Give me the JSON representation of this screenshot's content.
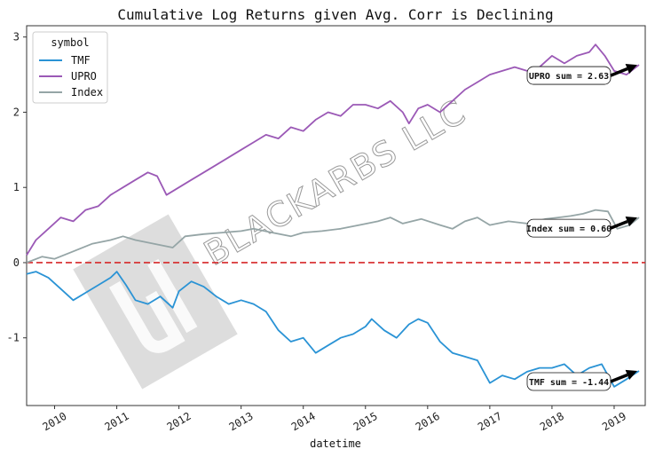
{
  "colors": {
    "tmf": "#2a93d5",
    "upro": "#9b59b6",
    "index": "#95a5a6",
    "zero_line": "#d62728",
    "watermark": "#d9d9d9"
  },
  "watermark": {
    "text": "BLACKARBS LLC",
    "icon": "blackarbs-logo"
  },
  "chart_data": {
    "type": "line",
    "title": "Cumulative Log Returns given Avg. Corr is Declining",
    "xlabel": "datetime",
    "ylabel": "",
    "xlim": [
      2009.55,
      2019.5
    ],
    "ylim": [
      -1.9,
      3.15
    ],
    "x_ticks": [
      2010,
      2011,
      2012,
      2013,
      2014,
      2015,
      2016,
      2017,
      2018,
      2019
    ],
    "x_tick_labels": [
      "2010",
      "2011",
      "2012",
      "2013",
      "2014",
      "2015",
      "2016",
      "2017",
      "2018",
      "2019"
    ],
    "y_ticks": [
      -1,
      0,
      1,
      2,
      3
    ],
    "y_tick_labels": [
      "-1",
      "0",
      "1",
      "2",
      "3"
    ],
    "grid": false,
    "legend": {
      "title": "symbol",
      "placement": "top-left"
    },
    "reference_line": {
      "y": 0,
      "style": "dashed"
    },
    "series": [
      {
        "name": "TMF",
        "x": [
          2009.55,
          2009.7,
          2009.9,
          2010.1,
          2010.3,
          2010.5,
          2010.7,
          2010.9,
          2011.0,
          2011.15,
          2011.3,
          2011.5,
          2011.7,
          2011.9,
          2012.0,
          2012.2,
          2012.4,
          2012.6,
          2012.8,
          2013.0,
          2013.2,
          2013.4,
          2013.6,
          2013.8,
          2014.0,
          2014.2,
          2014.4,
          2014.6,
          2014.8,
          2015.0,
          2015.1,
          2015.3,
          2015.5,
          2015.7,
          2015.85,
          2016.0,
          2016.2,
          2016.4,
          2016.6,
          2016.8,
          2017.0,
          2017.2,
          2017.4,
          2017.6,
          2017.8,
          2018.0,
          2018.2,
          2018.4,
          2018.6,
          2018.8,
          2019.0,
          2019.2,
          2019.4
        ],
        "y": [
          -0.15,
          -0.12,
          -0.2,
          -0.35,
          -0.5,
          -0.4,
          -0.3,
          -0.2,
          -0.12,
          -0.3,
          -0.5,
          -0.55,
          -0.45,
          -0.6,
          -0.38,
          -0.25,
          -0.32,
          -0.45,
          -0.55,
          -0.5,
          -0.55,
          -0.65,
          -0.9,
          -1.05,
          -1.0,
          -1.2,
          -1.1,
          -1.0,
          -0.95,
          -0.85,
          -0.75,
          -0.9,
          -1.0,
          -0.82,
          -0.75,
          -0.8,
          -1.05,
          -1.2,
          -1.25,
          -1.3,
          -1.6,
          -1.5,
          -1.55,
          -1.45,
          -1.4,
          -1.4,
          -1.35,
          -1.5,
          -1.4,
          -1.35,
          -1.65,
          -1.55,
          -1.44
        ]
      },
      {
        "name": "UPRO",
        "x": [
          2009.55,
          2009.7,
          2009.9,
          2010.1,
          2010.3,
          2010.5,
          2010.7,
          2010.9,
          2011.1,
          2011.3,
          2011.5,
          2011.65,
          2011.8,
          2012.0,
          2012.2,
          2012.4,
          2012.6,
          2012.8,
          2013.0,
          2013.2,
          2013.4,
          2013.6,
          2013.8,
          2014.0,
          2014.2,
          2014.4,
          2014.6,
          2014.8,
          2015.0,
          2015.2,
          2015.4,
          2015.6,
          2015.7,
          2015.85,
          2016.0,
          2016.2,
          2016.4,
          2016.6,
          2016.8,
          2017.0,
          2017.2,
          2017.4,
          2017.6,
          2017.8,
          2018.0,
          2018.2,
          2018.4,
          2018.6,
          2018.7,
          2018.85,
          2019.0,
          2019.2,
          2019.4
        ],
        "y": [
          0.1,
          0.3,
          0.45,
          0.6,
          0.55,
          0.7,
          0.75,
          0.9,
          1.0,
          1.1,
          1.2,
          1.15,
          0.9,
          1.0,
          1.1,
          1.2,
          1.3,
          1.4,
          1.5,
          1.6,
          1.7,
          1.65,
          1.8,
          1.75,
          1.9,
          2.0,
          1.95,
          2.1,
          2.1,
          2.05,
          2.15,
          2.0,
          1.85,
          2.05,
          2.1,
          2.0,
          2.15,
          2.3,
          2.4,
          2.5,
          2.55,
          2.6,
          2.55,
          2.6,
          2.75,
          2.65,
          2.75,
          2.8,
          2.9,
          2.75,
          2.55,
          2.5,
          2.63
        ]
      },
      {
        "name": "Index",
        "x": [
          2009.55,
          2009.8,
          2010.0,
          2010.3,
          2010.6,
          2010.9,
          2011.1,
          2011.3,
          2011.6,
          2011.9,
          2012.1,
          2012.4,
          2012.7,
          2013.0,
          2013.2,
          2013.5,
          2013.8,
          2014.0,
          2014.3,
          2014.6,
          2014.9,
          2015.2,
          2015.4,
          2015.6,
          2015.9,
          2016.2,
          2016.4,
          2016.6,
          2016.8,
          2017.0,
          2017.3,
          2017.6,
          2017.9,
          2018.1,
          2018.3,
          2018.5,
          2018.7,
          2018.9,
          2019.05,
          2019.25,
          2019.4
        ],
        "y": [
          0.0,
          0.08,
          0.05,
          0.15,
          0.25,
          0.3,
          0.35,
          0.3,
          0.25,
          0.2,
          0.35,
          0.38,
          0.4,
          0.42,
          0.45,
          0.4,
          0.35,
          0.4,
          0.42,
          0.45,
          0.5,
          0.55,
          0.6,
          0.52,
          0.58,
          0.5,
          0.45,
          0.55,
          0.6,
          0.5,
          0.55,
          0.52,
          0.58,
          0.6,
          0.62,
          0.65,
          0.7,
          0.68,
          0.45,
          0.5,
          0.6
        ]
      }
    ],
    "annotations": [
      {
        "series": "UPRO",
        "text": "UPRO sum = 2.63",
        "x": 2019.4,
        "y": 2.63
      },
      {
        "series": "Index",
        "text": "Index sum = 0.60",
        "x": 2019.4,
        "y": 0.6
      },
      {
        "series": "TMF",
        "text": "TMF sum = -1.44",
        "x": 2019.4,
        "y": -1.44
      }
    ]
  }
}
